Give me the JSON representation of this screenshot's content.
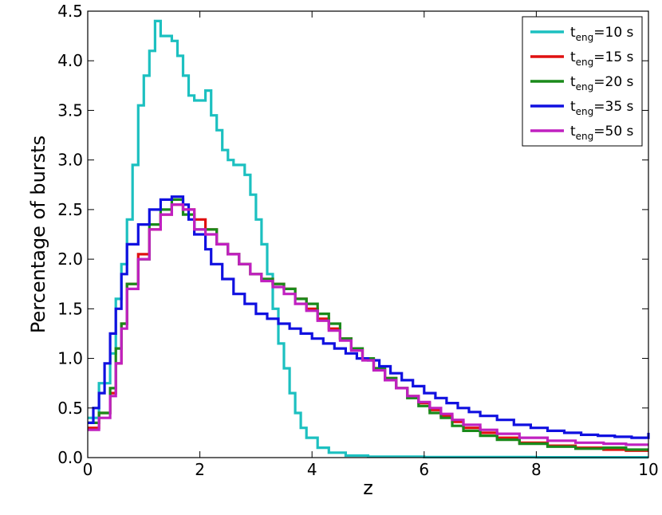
{
  "chart_data": {
    "type": "line",
    "line_style": "step",
    "title": "",
    "xlabel": "z",
    "ylabel": "Percentage of bursts",
    "xlim": [
      0,
      10
    ],
    "ylim": [
      0,
      4.5
    ],
    "xticks": [
      "0",
      "2",
      "4",
      "6",
      "8",
      "10"
    ],
    "yticks": [
      "0.0",
      "0.5",
      "1.0",
      "1.5",
      "2.0",
      "2.5",
      "3.0",
      "3.5",
      "4.0",
      "4.5"
    ],
    "grid": false,
    "legend_position": "top-right",
    "series": [
      {
        "name": "t_eng=10 s",
        "label_prefix": "t",
        "label_sub": "eng",
        "label_suffix": "=10 s",
        "color": "#1cc0c0",
        "points": [
          [
            0,
            0.4
          ],
          [
            0.2,
            0.75
          ],
          [
            0.4,
            1.05
          ],
          [
            0.5,
            1.6
          ],
          [
            0.6,
            1.95
          ],
          [
            0.7,
            2.4
          ],
          [
            0.8,
            2.95
          ],
          [
            0.9,
            3.55
          ],
          [
            1.0,
            3.85
          ],
          [
            1.1,
            4.1
          ],
          [
            1.2,
            4.4
          ],
          [
            1.3,
            4.25
          ],
          [
            1.5,
            4.2
          ],
          [
            1.6,
            4.05
          ],
          [
            1.7,
            3.85
          ],
          [
            1.8,
            3.65
          ],
          [
            1.9,
            3.6
          ],
          [
            2.1,
            3.7
          ],
          [
            2.2,
            3.45
          ],
          [
            2.3,
            3.3
          ],
          [
            2.4,
            3.1
          ],
          [
            2.5,
            3.0
          ],
          [
            2.6,
            2.95
          ],
          [
            2.8,
            2.85
          ],
          [
            2.9,
            2.65
          ],
          [
            3.0,
            2.4
          ],
          [
            3.1,
            2.15
          ],
          [
            3.2,
            1.85
          ],
          [
            3.3,
            1.5
          ],
          [
            3.4,
            1.15
          ],
          [
            3.5,
            0.9
          ],
          [
            3.6,
            0.65
          ],
          [
            3.7,
            0.45
          ],
          [
            3.8,
            0.3
          ],
          [
            3.9,
            0.2
          ],
          [
            4.1,
            0.1
          ],
          [
            4.3,
            0.05
          ],
          [
            4.6,
            0.02
          ],
          [
            5.0,
            0.01
          ],
          [
            6.0,
            0.005
          ],
          [
            8.0,
            0.003
          ],
          [
            10.0,
            0.003
          ]
        ]
      },
      {
        "name": "t_eng=15 s",
        "label_prefix": "t",
        "label_sub": "eng",
        "label_suffix": "=15 s",
        "color": "#e01010",
        "points": [
          [
            0,
            0.3
          ],
          [
            0.2,
            0.45
          ],
          [
            0.4,
            0.65
          ],
          [
            0.5,
            0.95
          ],
          [
            0.6,
            1.35
          ],
          [
            0.7,
            1.75
          ],
          [
            0.9,
            2.05
          ],
          [
            1.1,
            2.3
          ],
          [
            1.3,
            2.45
          ],
          [
            1.5,
            2.55
          ],
          [
            1.7,
            2.5
          ],
          [
            1.9,
            2.4
          ],
          [
            2.1,
            2.3
          ],
          [
            2.3,
            2.15
          ],
          [
            2.5,
            2.05
          ],
          [
            2.7,
            1.95
          ],
          [
            2.9,
            1.85
          ],
          [
            3.1,
            1.8
          ],
          [
            3.3,
            1.75
          ],
          [
            3.5,
            1.7
          ],
          [
            3.7,
            1.6
          ],
          [
            3.9,
            1.5
          ],
          [
            4.1,
            1.4
          ],
          [
            4.3,
            1.3
          ],
          [
            4.5,
            1.2
          ],
          [
            4.7,
            1.1
          ],
          [
            4.9,
            1.0
          ],
          [
            5.1,
            0.9
          ],
          [
            5.3,
            0.8
          ],
          [
            5.5,
            0.7
          ],
          [
            5.7,
            0.62
          ],
          [
            5.9,
            0.55
          ],
          [
            6.1,
            0.48
          ],
          [
            6.3,
            0.42
          ],
          [
            6.5,
            0.36
          ],
          [
            6.7,
            0.3
          ],
          [
            7.0,
            0.25
          ],
          [
            7.3,
            0.2
          ],
          [
            7.7,
            0.15
          ],
          [
            8.2,
            0.12
          ],
          [
            8.7,
            0.1
          ],
          [
            9.2,
            0.08
          ],
          [
            9.6,
            0.07
          ],
          [
            10.0,
            0.07
          ]
        ]
      },
      {
        "name": "t_eng=20 s",
        "label_prefix": "t",
        "label_sub": "eng",
        "label_suffix": "=20 s",
        "color": "#1a8a1a",
        "points": [
          [
            0,
            0.35
          ],
          [
            0.2,
            0.45
          ],
          [
            0.4,
            0.7
          ],
          [
            0.5,
            1.1
          ],
          [
            0.6,
            1.35
          ],
          [
            0.7,
            1.75
          ],
          [
            0.9,
            2.0
          ],
          [
            1.1,
            2.35
          ],
          [
            1.3,
            2.5
          ],
          [
            1.5,
            2.6
          ],
          [
            1.7,
            2.45
          ],
          [
            1.9,
            2.3
          ],
          [
            2.1,
            2.3
          ],
          [
            2.3,
            2.15
          ],
          [
            2.5,
            2.05
          ],
          [
            2.7,
            1.95
          ],
          [
            2.9,
            1.85
          ],
          [
            3.1,
            1.8
          ],
          [
            3.3,
            1.75
          ],
          [
            3.5,
            1.7
          ],
          [
            3.7,
            1.6
          ],
          [
            3.9,
            1.55
          ],
          [
            4.1,
            1.45
          ],
          [
            4.3,
            1.35
          ],
          [
            4.5,
            1.2
          ],
          [
            4.7,
            1.1
          ],
          [
            4.9,
            1.0
          ],
          [
            5.1,
            0.9
          ],
          [
            5.3,
            0.8
          ],
          [
            5.5,
            0.7
          ],
          [
            5.7,
            0.6
          ],
          [
            5.9,
            0.52
          ],
          [
            6.1,
            0.45
          ],
          [
            6.3,
            0.4
          ],
          [
            6.5,
            0.32
          ],
          [
            6.7,
            0.27
          ],
          [
            7.0,
            0.22
          ],
          [
            7.3,
            0.18
          ],
          [
            7.7,
            0.14
          ],
          [
            8.2,
            0.11
          ],
          [
            8.7,
            0.09
          ],
          [
            9.2,
            0.1
          ],
          [
            9.6,
            0.08
          ],
          [
            10.0,
            0.08
          ]
        ]
      },
      {
        "name": "t_eng=35 s",
        "label_prefix": "t",
        "label_sub": "eng",
        "label_suffix": "=35 s",
        "color": "#1010e0",
        "points": [
          [
            0,
            0.35
          ],
          [
            0.1,
            0.5
          ],
          [
            0.2,
            0.65
          ],
          [
            0.3,
            0.95
          ],
          [
            0.4,
            1.25
          ],
          [
            0.5,
            1.5
          ],
          [
            0.6,
            1.85
          ],
          [
            0.7,
            2.15
          ],
          [
            0.9,
            2.35
          ],
          [
            1.1,
            2.5
          ],
          [
            1.3,
            2.6
          ],
          [
            1.5,
            2.63
          ],
          [
            1.7,
            2.55
          ],
          [
            1.8,
            2.4
          ],
          [
            1.9,
            2.25
          ],
          [
            2.1,
            2.1
          ],
          [
            2.2,
            1.95
          ],
          [
            2.4,
            1.8
          ],
          [
            2.6,
            1.65
          ],
          [
            2.8,
            1.55
          ],
          [
            3.0,
            1.45
          ],
          [
            3.2,
            1.4
          ],
          [
            3.4,
            1.35
          ],
          [
            3.6,
            1.3
          ],
          [
            3.8,
            1.25
          ],
          [
            4.0,
            1.2
          ],
          [
            4.2,
            1.15
          ],
          [
            4.4,
            1.1
          ],
          [
            4.6,
            1.05
          ],
          [
            4.8,
            1.0
          ],
          [
            5.0,
            0.98
          ],
          [
            5.2,
            0.92
          ],
          [
            5.4,
            0.85
          ],
          [
            5.6,
            0.78
          ],
          [
            5.8,
            0.72
          ],
          [
            6.0,
            0.65
          ],
          [
            6.2,
            0.6
          ],
          [
            6.4,
            0.55
          ],
          [
            6.6,
            0.5
          ],
          [
            6.8,
            0.46
          ],
          [
            7.0,
            0.42
          ],
          [
            7.3,
            0.38
          ],
          [
            7.6,
            0.33
          ],
          [
            7.9,
            0.3
          ],
          [
            8.2,
            0.27
          ],
          [
            8.5,
            0.25
          ],
          [
            8.8,
            0.23
          ],
          [
            9.1,
            0.22
          ],
          [
            9.4,
            0.21
          ],
          [
            9.7,
            0.2
          ],
          [
            10.0,
            0.25
          ]
        ]
      },
      {
        "name": "t_eng=50 s",
        "label_prefix": "t",
        "label_sub": "eng",
        "label_suffix": "=50 s",
        "color": "#c020c0",
        "points": [
          [
            0,
            0.28
          ],
          [
            0.2,
            0.4
          ],
          [
            0.4,
            0.62
          ],
          [
            0.5,
            0.95
          ],
          [
            0.6,
            1.3
          ],
          [
            0.7,
            1.7
          ],
          [
            0.9,
            2.0
          ],
          [
            1.1,
            2.3
          ],
          [
            1.3,
            2.45
          ],
          [
            1.5,
            2.55
          ],
          [
            1.7,
            2.5
          ],
          [
            1.9,
            2.3
          ],
          [
            2.1,
            2.25
          ],
          [
            2.3,
            2.15
          ],
          [
            2.5,
            2.05
          ],
          [
            2.7,
            1.95
          ],
          [
            2.9,
            1.85
          ],
          [
            3.1,
            1.78
          ],
          [
            3.3,
            1.72
          ],
          [
            3.5,
            1.65
          ],
          [
            3.7,
            1.55
          ],
          [
            3.9,
            1.48
          ],
          [
            4.1,
            1.38
          ],
          [
            4.3,
            1.28
          ],
          [
            4.5,
            1.18
          ],
          [
            4.7,
            1.08
          ],
          [
            4.9,
            0.98
          ],
          [
            5.1,
            0.88
          ],
          [
            5.3,
            0.78
          ],
          [
            5.5,
            0.7
          ],
          [
            5.7,
            0.62
          ],
          [
            5.9,
            0.56
          ],
          [
            6.1,
            0.5
          ],
          [
            6.3,
            0.44
          ],
          [
            6.5,
            0.38
          ],
          [
            6.7,
            0.33
          ],
          [
            7.0,
            0.28
          ],
          [
            7.3,
            0.24
          ],
          [
            7.7,
            0.2
          ],
          [
            8.2,
            0.17
          ],
          [
            8.7,
            0.15
          ],
          [
            9.2,
            0.14
          ],
          [
            9.6,
            0.13
          ],
          [
            10.0,
            0.13
          ]
        ]
      }
    ]
  }
}
